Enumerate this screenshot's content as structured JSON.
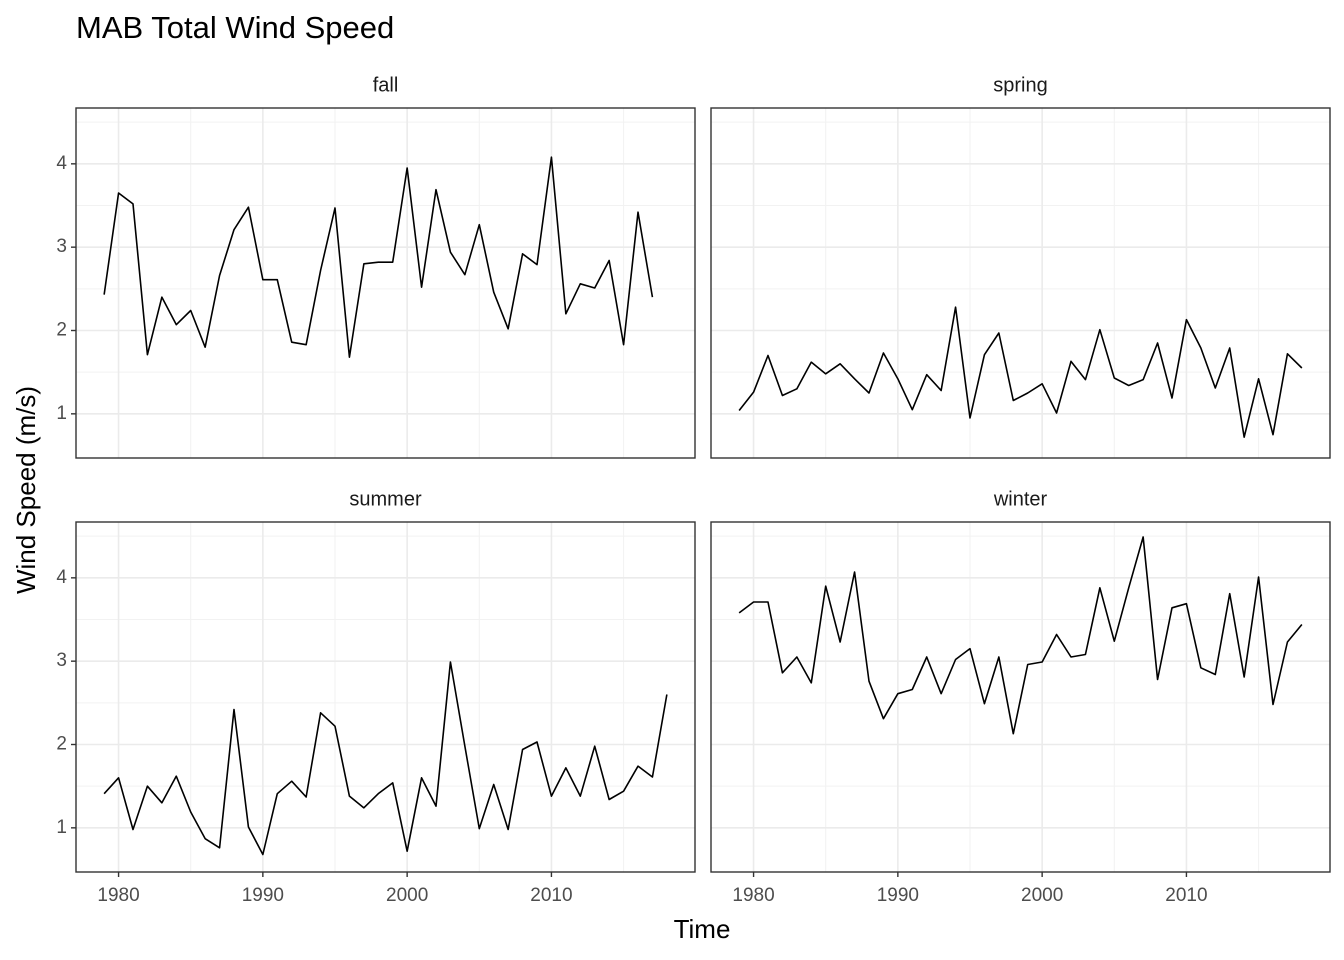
{
  "title": "MAB Total Wind Speed",
  "x_label": "Time",
  "y_label": "Wind Speed (m/s)",
  "xlim": [
    1977.05,
    2019.95
  ],
  "xticks": [
    1980,
    1990,
    2000,
    2010
  ],
  "x_minor_ticks": [
    1985,
    1995,
    2005,
    2015
  ],
  "ylim": [
    0.47,
    4.67
  ],
  "yticks": [
    1,
    2,
    3,
    4
  ],
  "y_minor_ticks": [
    1.5,
    2.5,
    3.5,
    4.5
  ],
  "grid": true,
  "line_color": "#000000",
  "chart_data": [
    {
      "type": "line",
      "title": "fall",
      "x": [
        1979,
        1980,
        1981,
        1982,
        1983,
        1984,
        1985,
        1986,
        1987,
        1988,
        1989,
        1990,
        1991,
        1992,
        1993,
        1994,
        1995,
        1996,
        1997,
        1998,
        1999,
        2000,
        2001,
        2002,
        2003,
        2004,
        2005,
        2006,
        2007,
        2008,
        2009,
        2010,
        2011,
        2012,
        2013,
        2014,
        2015,
        2016,
        2017
      ],
      "values": [
        2.43,
        3.65,
        3.52,
        1.71,
        2.4,
        2.07,
        2.24,
        1.8,
        2.66,
        3.21,
        3.48,
        2.61,
        2.61,
        1.86,
        1.83,
        2.72,
        3.47,
        1.68,
        2.8,
        2.82,
        2.82,
        3.95,
        2.52,
        3.69,
        2.94,
        2.67,
        3.27,
        2.46,
        2.02,
        2.92,
        2.79,
        4.08,
        2.2,
        2.56,
        2.51,
        2.84,
        1.83,
        3.42,
        2.4
      ]
    },
    {
      "type": "line",
      "title": "spring",
      "x": [
        1979,
        1980,
        1981,
        1982,
        1983,
        1984,
        1985,
        1986,
        1987,
        1988,
        1989,
        1990,
        1991,
        1992,
        1993,
        1994,
        1995,
        1996,
        1997,
        1998,
        1999,
        2000,
        2001,
        2002,
        2003,
        2004,
        2005,
        2006,
        2007,
        2008,
        2009,
        2010,
        2011,
        2012,
        2013,
        2014,
        2015,
        2016,
        2017,
        2018
      ],
      "values": [
        1.04,
        1.26,
        1.7,
        1.22,
        1.3,
        1.62,
        1.48,
        1.6,
        1.42,
        1.25,
        1.73,
        1.42,
        1.05,
        1.47,
        1.28,
        2.28,
        0.95,
        1.71,
        1.97,
        1.16,
        1.25,
        1.36,
        1.01,
        1.63,
        1.41,
        2.01,
        1.43,
        1.34,
        1.41,
        1.85,
        1.19,
        2.13,
        1.79,
        1.31,
        1.79,
        0.72,
        1.42,
        0.75,
        1.72,
        1.55
      ]
    },
    {
      "type": "line",
      "title": "summer",
      "x": [
        1979,
        1980,
        1981,
        1982,
        1983,
        1984,
        1985,
        1986,
        1987,
        1988,
        1989,
        1990,
        1991,
        1992,
        1993,
        1994,
        1995,
        1996,
        1997,
        1998,
        1999,
        2000,
        2001,
        2002,
        2003,
        2004,
        2005,
        2006,
        2007,
        2008,
        2009,
        2010,
        2011,
        2012,
        2013,
        2014,
        2015,
        2016,
        2017,
        2018
      ],
      "values": [
        1.41,
        1.6,
        0.98,
        1.5,
        1.3,
        1.62,
        1.19,
        0.87,
        0.76,
        2.42,
        1.01,
        0.68,
        1.41,
        1.56,
        1.37,
        2.38,
        2.22,
        1.38,
        1.24,
        1.41,
        1.54,
        0.72,
        1.6,
        1.26,
        2.99,
        1.98,
        0.99,
        1.52,
        0.98,
        1.94,
        2.03,
        1.38,
        1.72,
        1.38,
        1.98,
        1.34,
        1.44,
        1.74,
        1.61,
        2.6
      ]
    },
    {
      "type": "line",
      "title": "winter",
      "x": [
        1979,
        1980,
        1981,
        1982,
        1983,
        1984,
        1985,
        1986,
        1987,
        1988,
        1989,
        1990,
        1991,
        1992,
        1993,
        1994,
        1995,
        1996,
        1997,
        1998,
        1999,
        2000,
        2001,
        2002,
        2003,
        2004,
        2005,
        2006,
        2007,
        2008,
        2009,
        2010,
        2011,
        2012,
        2013,
        2014,
        2015,
        2016,
        2017,
        2018
      ],
      "values": [
        3.58,
        3.71,
        3.71,
        2.86,
        3.05,
        2.74,
        3.9,
        3.23,
        4.07,
        2.76,
        2.31,
        2.61,
        2.66,
        3.05,
        2.61,
        3.02,
        3.15,
        2.49,
        3.05,
        2.13,
        2.96,
        2.99,
        3.32,
        3.05,
        3.08,
        3.88,
        3.24,
        3.88,
        4.49,
        2.78,
        3.64,
        3.69,
        2.92,
        2.84,
        3.81,
        2.81,
        4.01,
        2.48,
        3.23,
        3.44
      ]
    }
  ]
}
